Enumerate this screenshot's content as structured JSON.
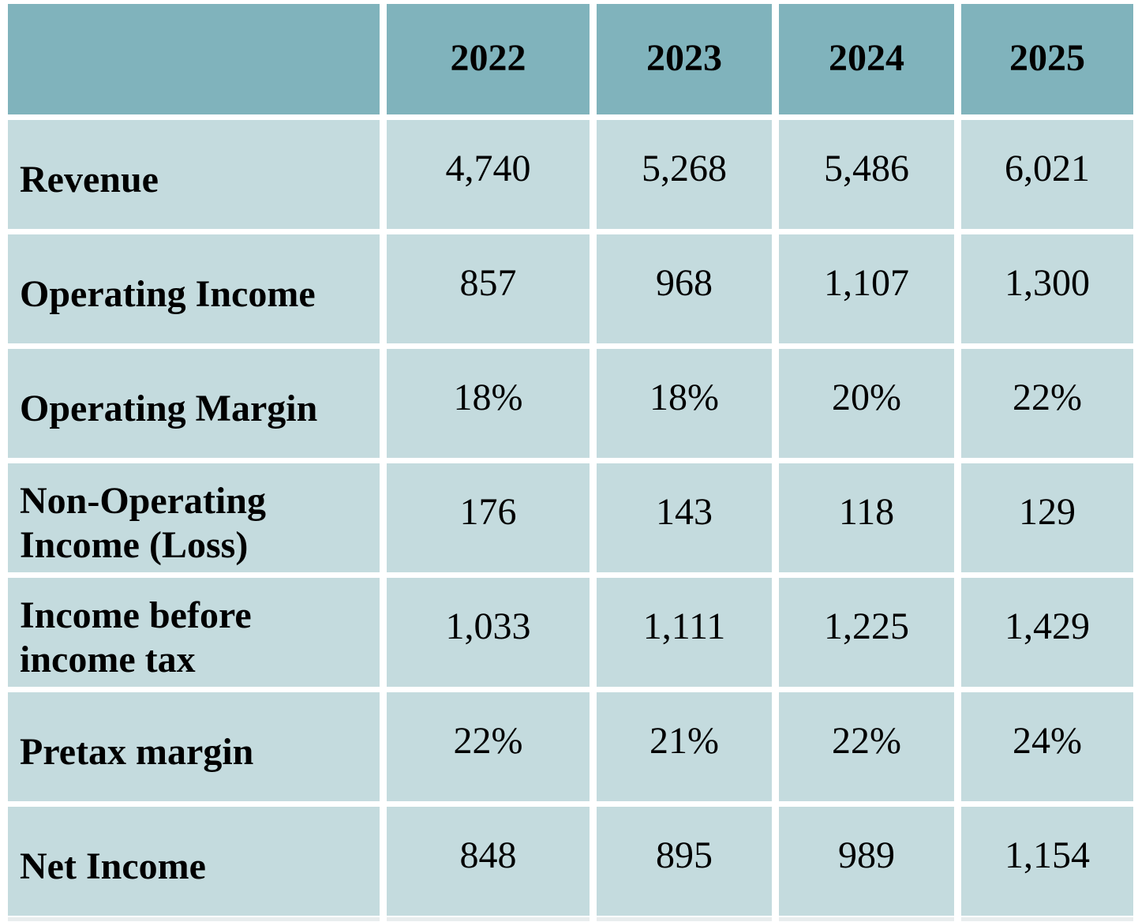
{
  "chart_data": {
    "type": "table",
    "columns": [
      "2022",
      "2023",
      "2024",
      "2025"
    ],
    "rows": [
      {
        "label": "Revenue",
        "values": [
          "4,740",
          "5,268",
          "5,486",
          "6,021"
        ]
      },
      {
        "label": "Operating Income",
        "values": [
          "857",
          "968",
          "1,107",
          "1,300"
        ]
      },
      {
        "label": "Operating Margin",
        "values": [
          "18%",
          "18%",
          "20%",
          "22%"
        ]
      },
      {
        "label": "Non-Operating Income (Loss)",
        "values": [
          "176",
          "143",
          "118",
          "129"
        ]
      },
      {
        "label": "Income before income tax",
        "values": [
          "1,033",
          "1,111",
          "1,225",
          "1,429"
        ]
      },
      {
        "label": "Pretax margin",
        "values": [
          "22%",
          "21%",
          "22%",
          "24%"
        ]
      },
      {
        "label": "Net Income",
        "values": [
          "848",
          "895",
          "989",
          "1,154"
        ]
      }
    ]
  },
  "colors": {
    "header_bg": "#80b3bc",
    "cell_bg": "#c4dbde",
    "gap": "#ffffff",
    "text": "#000000"
  }
}
